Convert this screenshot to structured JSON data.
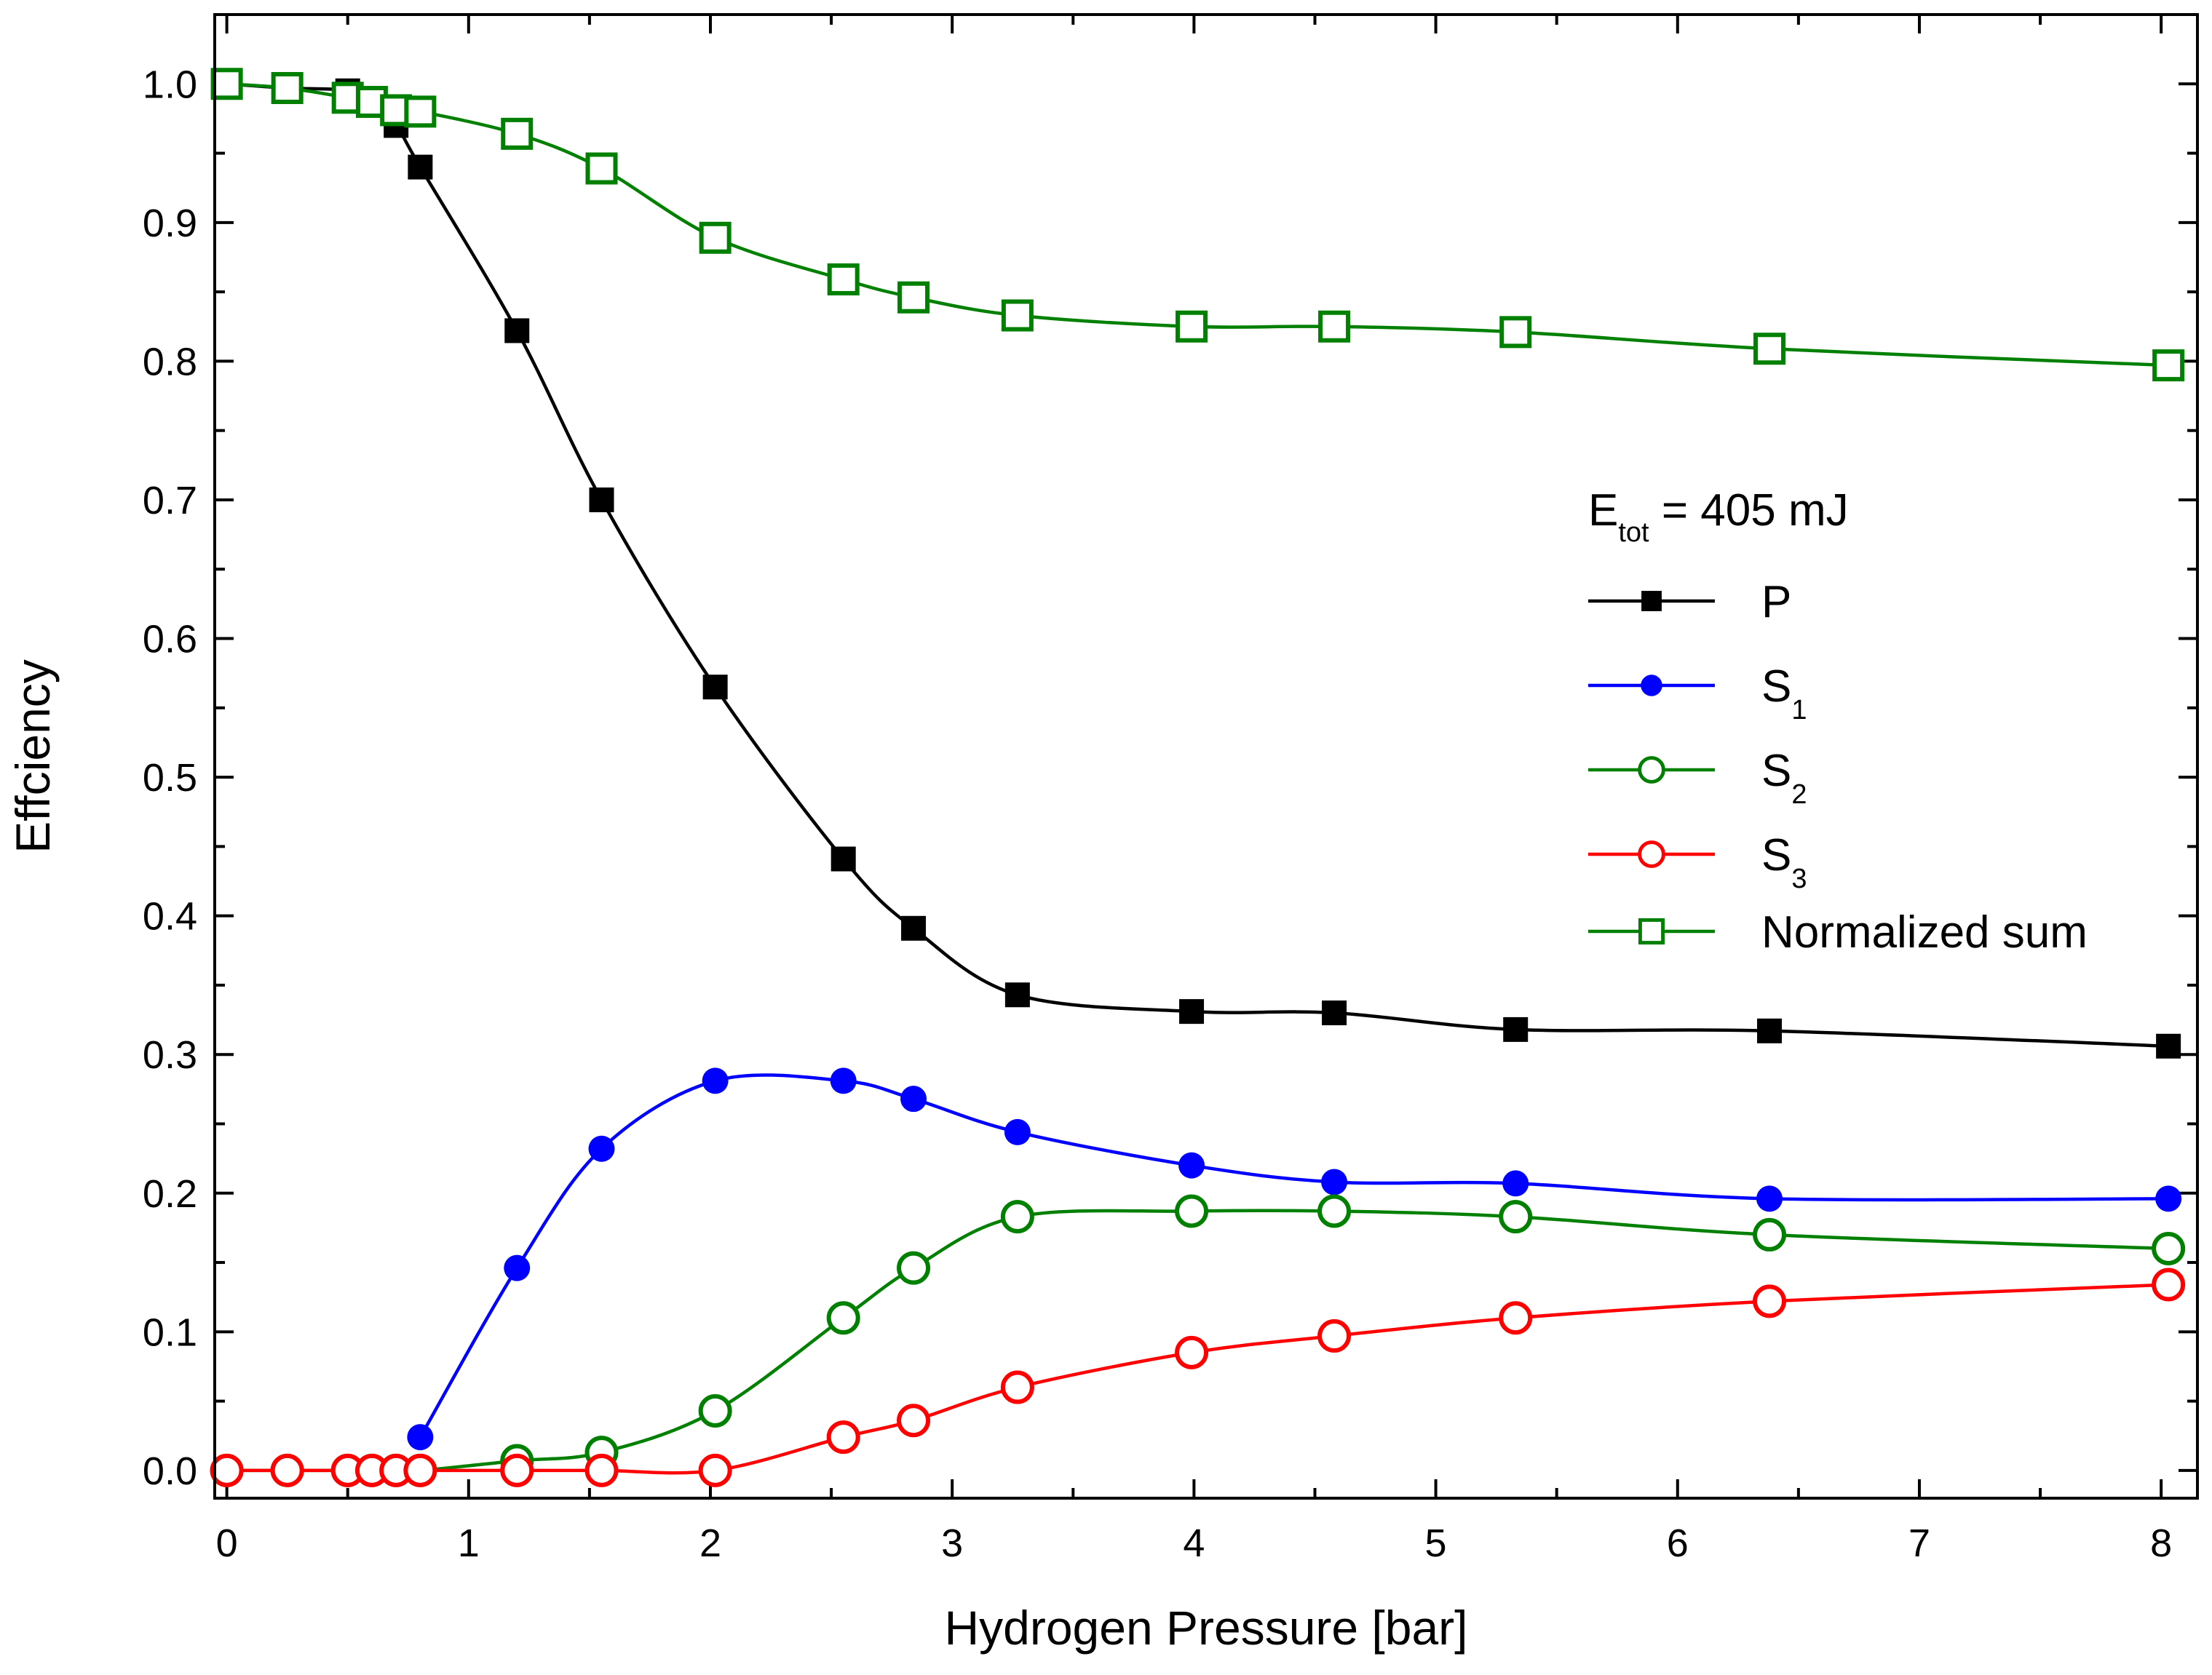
{
  "chart_data": {
    "type": "line",
    "title": "",
    "xlabel": "Hydrogen Pressure [bar]",
    "ylabel": "Effciency",
    "xlim": [
      -0.05,
      8.15
    ],
    "ylim": [
      -0.02,
      1.05
    ],
    "xticks": [
      0,
      1,
      2,
      3,
      4,
      5,
      6,
      7,
      8
    ],
    "xtick_labels": [
      "0",
      "1",
      "2",
      "3",
      "4",
      "5",
      "6",
      "7",
      "8"
    ],
    "yticks": [
      0.0,
      0.1,
      0.2,
      0.3,
      0.4,
      0.5,
      0.6,
      0.7,
      0.8,
      0.9,
      1.0
    ],
    "ytick_labels": [
      "0.0",
      "0.1",
      "0.2",
      "0.3",
      "0.4",
      "0.5",
      "0.6",
      "0.7",
      "0.8",
      "0.9",
      "1.0"
    ],
    "grid": false,
    "legend_position": "right",
    "annotation": {
      "main": "E",
      "sub": "tot",
      "rest": " = 405 mJ"
    },
    "series": [
      {
        "name": "P",
        "subscript": "",
        "color": "#000000",
        "marker": "square-filled",
        "x": [
          0,
          0.25,
          0.5,
          0.6,
          0.7,
          0.8,
          1.2,
          1.55,
          2.02,
          2.55,
          2.84,
          3.27,
          3.99,
          4.58,
          5.33,
          6.38,
          8.03
        ],
        "y": [
          1.0,
          0.997,
          0.995,
          0.985,
          0.97,
          0.94,
          0.822,
          0.7,
          0.565,
          0.441,
          0.391,
          0.343,
          0.331,
          0.33,
          0.318,
          0.317,
          0.306
        ]
      },
      {
        "name": "S",
        "subscript": "1",
        "color": "#0000ff",
        "marker": "circle-filled",
        "x": [
          0.8,
          1.2,
          1.55,
          2.02,
          2.55,
          2.84,
          3.27,
          3.99,
          4.58,
          5.33,
          6.38,
          8.03
        ],
        "y": [
          0.024,
          0.146,
          0.232,
          0.281,
          0.281,
          0.268,
          0.244,
          0.22,
          0.208,
          0.207,
          0.196,
          0.196
        ]
      },
      {
        "name": "S",
        "subscript": "2",
        "color": "#008000",
        "marker": "circle-open",
        "x": [
          0,
          0.25,
          0.5,
          0.6,
          0.7,
          0.8,
          1.2,
          1.55,
          2.02,
          2.55,
          2.84,
          3.27,
          3.99,
          4.58,
          5.33,
          6.38,
          8.03
        ],
        "y": [
          0.0,
          0.0,
          0.0,
          0.0,
          0.0,
          0.0,
          0.007,
          0.013,
          0.043,
          0.11,
          0.146,
          0.183,
          0.187,
          0.187,
          0.183,
          0.17,
          0.16
        ]
      },
      {
        "name": "S",
        "subscript": "3",
        "color": "#ff0000",
        "marker": "circle-open",
        "x": [
          0,
          0.25,
          0.5,
          0.6,
          0.7,
          0.8,
          1.2,
          1.55,
          2.02,
          2.55,
          2.84,
          3.27,
          3.99,
          4.58,
          5.33,
          6.38,
          8.03
        ],
        "y": [
          0.0,
          0.0,
          0.0,
          0.0,
          0.0,
          0.0,
          0.0,
          0.0,
          0.0,
          0.024,
          0.036,
          0.06,
          0.085,
          0.097,
          0.11,
          0.122,
          0.134
        ]
      },
      {
        "name": "Normalized sum",
        "subscript": "",
        "color": "#008000",
        "marker": "square-open",
        "x": [
          0,
          0.25,
          0.5,
          0.6,
          0.7,
          0.8,
          1.2,
          1.55,
          2.02,
          2.55,
          2.84,
          3.27,
          3.99,
          4.58,
          5.33,
          6.38,
          8.03
        ],
        "y": [
          1.0,
          0.997,
          0.99,
          0.987,
          0.981,
          0.98,
          0.964,
          0.939,
          0.889,
          0.859,
          0.846,
          0.833,
          0.825,
          0.825,
          0.821,
          0.809,
          0.797
        ]
      }
    ]
  }
}
